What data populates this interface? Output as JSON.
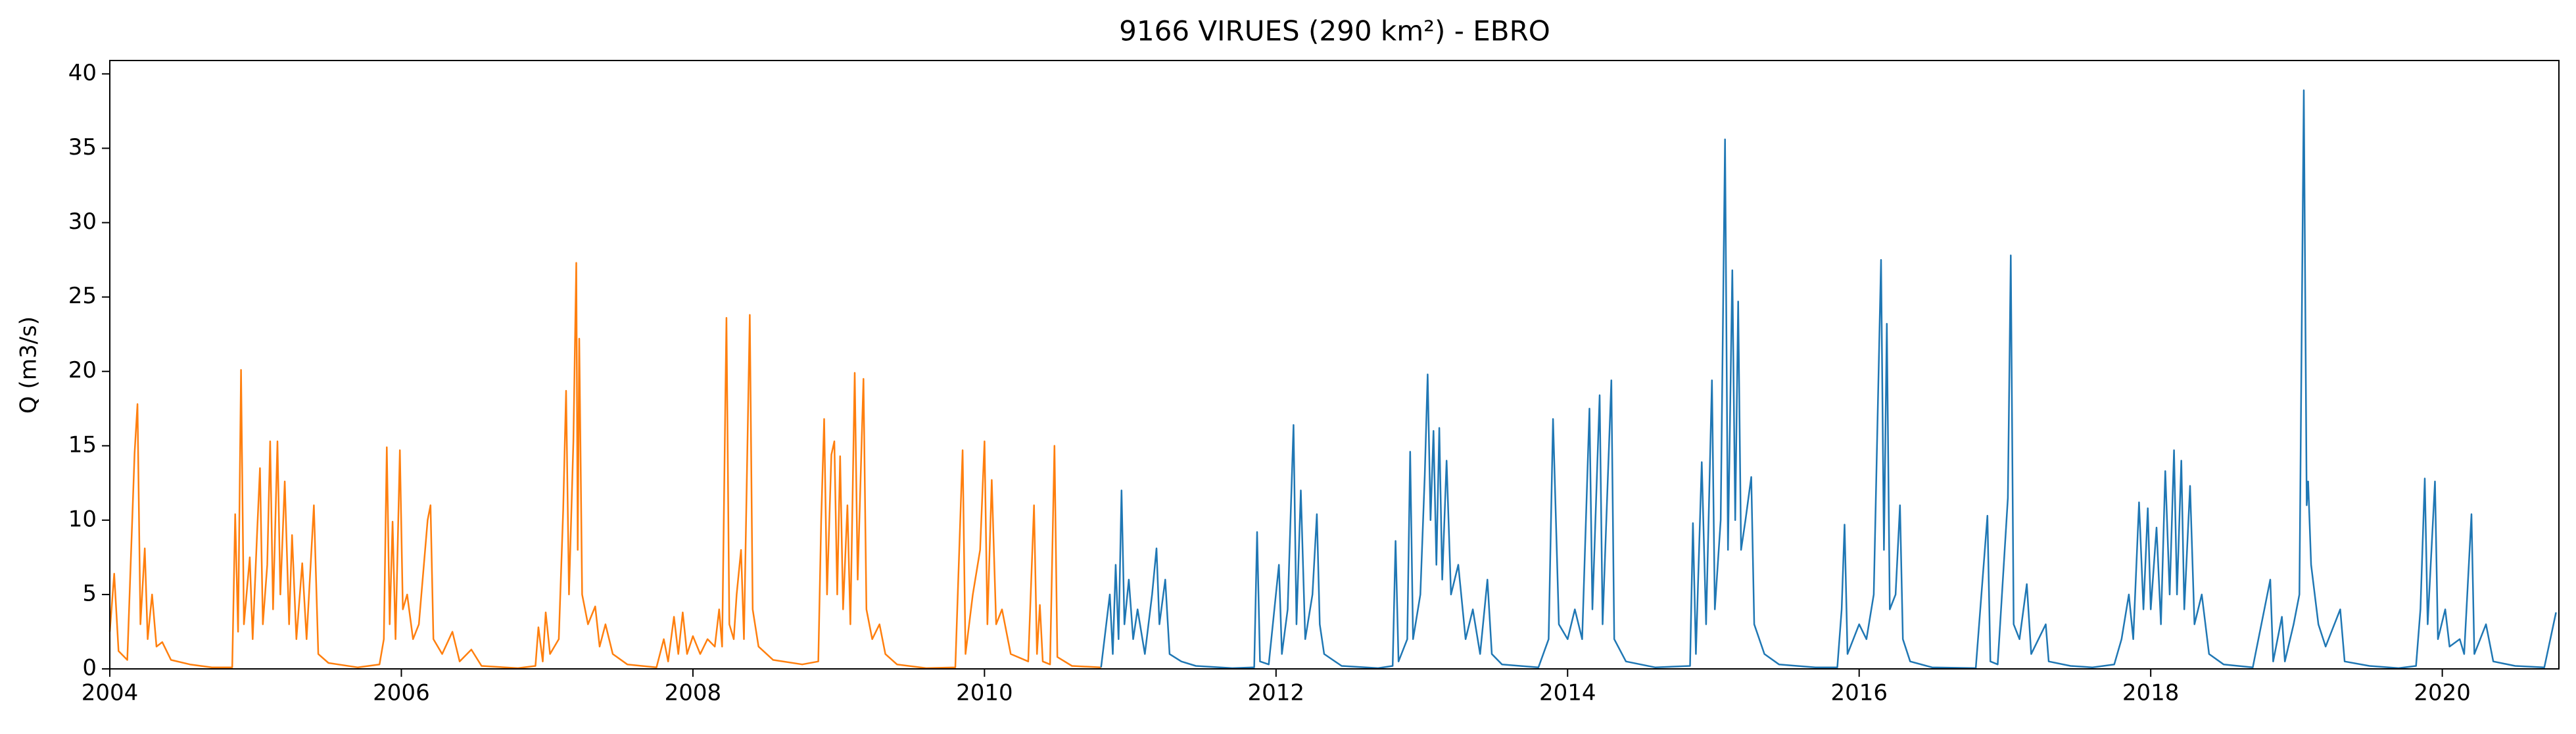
{
  "chart_data": {
    "type": "line",
    "title": "9166 VIRUES (290 km²) - EBRO",
    "y_label": "Q (m3/s)",
    "xlim": [
      2004,
      2020.8
    ],
    "xticks": [
      2004,
      2006,
      2008,
      2010,
      2012,
      2014,
      2016,
      2018,
      2020
    ],
    "ylim": [
      0,
      40.9
    ],
    "yticks": [
      0,
      5,
      10,
      15,
      20,
      25,
      30,
      35,
      40
    ],
    "grid": false,
    "series": [
      {
        "color": "#ff7f0e",
        "x": [
          2004.0,
          2004.03,
          2004.06,
          2004.12,
          2004.17,
          2004.19,
          2004.21,
          2004.24,
          2004.26,
          2004.29,
          2004.32,
          2004.36,
          2004.42,
          2004.55,
          2004.7,
          2004.84,
          2004.86,
          2004.88,
          2004.9,
          2004.92,
          2004.96,
          2004.98,
          2005.01,
          2005.03,
          2005.05,
          2005.08,
          2005.1,
          2005.12,
          2005.15,
          2005.17,
          2005.2,
          2005.23,
          2005.25,
          2005.28,
          2005.32,
          2005.35,
          2005.4,
          2005.43,
          2005.5,
          2005.7,
          2005.85,
          2005.88,
          2005.9,
          2005.92,
          2005.94,
          2005.96,
          2005.99,
          2006.01,
          2006.04,
          2006.08,
          2006.12,
          2006.18,
          2006.2,
          2006.22,
          2006.28,
          2006.35,
          2006.4,
          2006.48,
          2006.55,
          2006.8,
          2006.92,
          2006.94,
          2006.97,
          2006.99,
          2007.02,
          2007.08,
          2007.11,
          2007.13,
          2007.15,
          2007.18,
          2007.2,
          2007.21,
          2007.22,
          2007.24,
          2007.28,
          2007.33,
          2007.36,
          2007.4,
          2007.45,
          2007.55,
          2007.75,
          2007.8,
          2007.83,
          2007.87,
          2007.9,
          2007.93,
          2007.96,
          2008.0,
          2008.05,
          2008.1,
          2008.15,
          2008.18,
          2008.2,
          2008.23,
          2008.25,
          2008.28,
          2008.3,
          2008.33,
          2008.35,
          2008.39,
          2008.41,
          2008.45,
          2008.55,
          2008.75,
          2008.86,
          2008.88,
          2008.9,
          2008.92,
          2008.95,
          2008.97,
          2008.99,
          2009.01,
          2009.03,
          2009.06,
          2009.08,
          2009.11,
          2009.13,
          2009.17,
          2009.19,
          2009.23,
          2009.28,
          2009.32,
          2009.4,
          2009.6,
          2009.8,
          2009.85,
          2009.87,
          2009.92,
          2009.97,
          2010.0,
          2010.02,
          2010.05,
          2010.08,
          2010.12,
          2010.18,
          2010.3,
          2010.34,
          2010.36,
          2010.38,
          2010.4,
          2010.45,
          2010.48,
          2010.5,
          2010.6,
          2010.8
        ],
        "values": [
          2.5,
          6.4,
          1.2,
          0.6,
          14.5,
          17.8,
          3,
          8.1,
          2,
          5,
          1.5,
          1.8,
          0.6,
          0.3,
          0.1,
          0.1,
          10.4,
          2.5,
          20.1,
          3,
          7.5,
          2,
          9,
          13.5,
          3,
          7,
          15.3,
          4,
          15.3,
          5,
          12.6,
          3,
          9,
          2,
          7.1,
          2,
          11,
          1,
          0.4,
          0.1,
          0.3,
          2,
          14.9,
          3,
          9.9,
          2,
          14.7,
          4,
          5,
          2,
          3,
          10,
          11,
          2,
          1,
          2.5,
          0.5,
          1.3,
          0.2,
          0.05,
          0.2,
          2.8,
          0.5,
          3.8,
          1,
          2,
          10.7,
          18.7,
          5,
          15.3,
          27.3,
          8,
          22.2,
          5,
          3,
          4.2,
          1.5,
          3,
          1,
          0.3,
          0.1,
          2,
          0.5,
          3.5,
          1,
          3.8,
          1,
          2.2,
          1,
          2,
          1.5,
          4,
          1.5,
          23.6,
          3,
          2,
          5,
          8,
          2,
          23.8,
          4,
          1.5,
          0.6,
          0.3,
          0.5,
          10,
          16.8,
          5,
          14.4,
          15.3,
          5,
          14.3,
          4,
          11,
          3,
          19.9,
          6,
          19.5,
          4,
          2,
          3,
          1,
          0.3,
          0.05,
          0.1,
          14.7,
          1,
          5,
          8,
          15.3,
          3,
          12.7,
          3,
          4,
          1,
          0.5,
          11,
          1,
          4.3,
          0.5,
          0.3,
          15,
          0.8,
          0.2,
          0.1
        ]
      },
      {
        "color": "#1f77b4",
        "x": [
          2010.8,
          2010.86,
          2010.88,
          2010.9,
          2010.92,
          2010.94,
          2010.96,
          2010.99,
          2011.02,
          2011.05,
          2011.1,
          2011.15,
          2011.18,
          2011.2,
          2011.24,
          2011.27,
          2011.35,
          2011.45,
          2011.7,
          2011.85,
          2011.87,
          2011.89,
          2011.95,
          2012.02,
          2012.04,
          2012.08,
          2012.12,
          2012.14,
          2012.17,
          2012.2,
          2012.25,
          2012.28,
          2012.3,
          2012.33,
          2012.45,
          2012.7,
          2012.8,
          2012.82,
          2012.84,
          2012.9,
          2012.92,
          2012.94,
          2012.99,
          2013.02,
          2013.04,
          2013.06,
          2013.08,
          2013.1,
          2013.12,
          2013.14,
          2013.17,
          2013.2,
          2013.25,
          2013.3,
          2013.35,
          2013.4,
          2013.45,
          2013.48,
          2013.55,
          2013.8,
          2013.87,
          2013.9,
          2013.92,
          2013.94,
          2014.0,
          2014.05,
          2014.1,
          2014.15,
          2014.17,
          2014.22,
          2014.24,
          2014.3,
          2014.32,
          2014.4,
          2014.6,
          2014.84,
          2014.86,
          2014.88,
          2014.92,
          2014.95,
          2014.99,
          2015.01,
          2015.05,
          2015.08,
          2015.1,
          2015.13,
          2015.15,
          2015.17,
          2015.19,
          2015.22,
          2015.26,
          2015.28,
          2015.35,
          2015.45,
          2015.7,
          2015.85,
          2015.88,
          2015.9,
          2015.92,
          2016.0,
          2016.05,
          2016.1,
          2016.15,
          2016.17,
          2016.19,
          2016.21,
          2016.25,
          2016.28,
          2016.3,
          2016.35,
          2016.5,
          2016.8,
          2016.88,
          2016.9,
          2016.95,
          2017.02,
          2017.04,
          2017.06,
          2017.1,
          2017.15,
          2017.18,
          2017.28,
          2017.3,
          2017.45,
          2017.6,
          2017.75,
          2017.8,
          2017.85,
          2017.88,
          2017.92,
          2017.95,
          2017.98,
          2018.0,
          2018.04,
          2018.07,
          2018.1,
          2018.13,
          2018.16,
          2018.18,
          2018.21,
          2018.23,
          2018.27,
          2018.3,
          2018.35,
          2018.4,
          2018.5,
          2018.7,
          2018.82,
          2018.84,
          2018.9,
          2018.92,
          2018.98,
          2019.02,
          2019.05,
          2019.07,
          2019.08,
          2019.1,
          2019.15,
          2019.2,
          2019.3,
          2019.33,
          2019.5,
          2019.7,
          2019.82,
          2019.85,
          2019.88,
          2019.9,
          2019.95,
          2019.97,
          2020.02,
          2020.05,
          2020.12,
          2020.15,
          2020.2,
          2020.22,
          2020.3,
          2020.35,
          2020.5,
          2020.7,
          2020.78
        ],
        "values": [
          0.1,
          5,
          1,
          7,
          2,
          12,
          3,
          6,
          2,
          4,
          1,
          5,
          8.1,
          3,
          6,
          1,
          0.5,
          0.2,
          0.05,
          0.1,
          9.2,
          0.5,
          0.3,
          7,
          1,
          4,
          16.4,
          3,
          12,
          2,
          5,
          10.4,
          3,
          1,
          0.2,
          0.05,
          0.2,
          8.6,
          0.5,
          2,
          14.6,
          2,
          5,
          13,
          19.8,
          10,
          16,
          7,
          16.2,
          6,
          14,
          5,
          7,
          2,
          4,
          1,
          6,
          1,
          0.3,
          0.1,
          2,
          16.8,
          10,
          3,
          2,
          4,
          2,
          17.5,
          4,
          18.4,
          3,
          19.4,
          2,
          0.5,
          0.1,
          0.2,
          9.8,
          1,
          13.9,
          3,
          19.4,
          4,
          10,
          35.6,
          8,
          26.8,
          10,
          24.7,
          8,
          10,
          12.9,
          3,
          1,
          0.3,
          0.1,
          0.1,
          4,
          9.7,
          1,
          3,
          2,
          5,
          27.5,
          8,
          23.2,
          4,
          5,
          11,
          2,
          0.5,
          0.1,
          0.05,
          10.3,
          0.5,
          0.3,
          11.5,
          27.8,
          3,
          2,
          5.7,
          1,
          3,
          0.5,
          0.2,
          0.1,
          0.3,
          2,
          5,
          2,
          11.2,
          4,
          10.8,
          4,
          9.5,
          3,
          13.3,
          5,
          14.7,
          5,
          14,
          4,
          12.3,
          3,
          5,
          1,
          0.3,
          0.1,
          6,
          0.5,
          3.5,
          0.5,
          3,
          5,
          38.9,
          11,
          12.6,
          7,
          3,
          1.5,
          4,
          0.5,
          0.2,
          0.05,
          0.2,
          4,
          12.8,
          3,
          12.6,
          2,
          4,
          1.5,
          2,
          1,
          10.4,
          1,
          3,
          0.5,
          0.2,
          0.1,
          3.8
        ]
      }
    ]
  }
}
